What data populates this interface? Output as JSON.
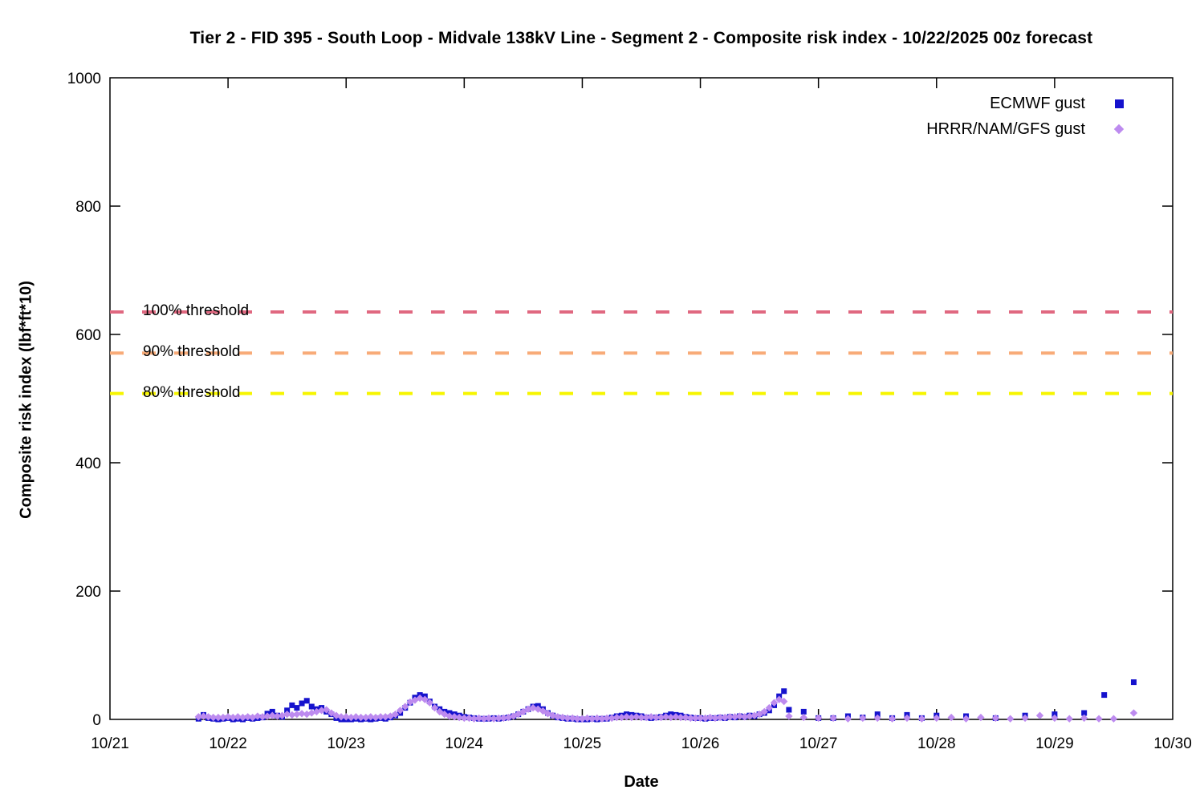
{
  "chart": {
    "title": "Tier 2 - FID 395 - South Loop - Midvale 138kV Line - Segment 2 - Composite risk index - 10/22/2025 00z forecast",
    "x_label": "Date",
    "y_label": "Composite risk index (lbf*ft*10)"
  },
  "chart_data": {
    "type": "scatter",
    "title": "Tier 2 - FID 395 - South Loop - Midvale 138kV Line - Segment 2 - Composite risk index - 10/22/2025 00z forecast",
    "xlabel": "Date",
    "ylabel": "Composite risk index (lbf*ft*10)",
    "grid": false,
    "legend_position": "top-right",
    "ylim": [
      0,
      1000
    ],
    "yticks": [
      0,
      200,
      400,
      600,
      800,
      1000
    ],
    "x_axis": {
      "unit": "days after 10/21 00:00",
      "range_days": [
        0,
        9
      ],
      "tick_labels": [
        "10/21",
        "10/22",
        "10/23",
        "10/24",
        "10/25",
        "10/26",
        "10/27",
        "10/28",
        "10/29",
        "10/30"
      ]
    },
    "thresholds": [
      {
        "label": "100% threshold",
        "value": 635,
        "color": "#e06880"
      },
      {
        "label": "90% threshold",
        "value": 571,
        "color": "#f8ab78"
      },
      {
        "label": "80% threshold",
        "value": 508,
        "color": "#f6f500"
      }
    ],
    "series": [
      {
        "name": "ECMWF gust",
        "marker": "square",
        "color": "#1512cd",
        "points": [
          [
            0.75,
            1
          ],
          [
            0.792,
            7
          ],
          [
            0.833,
            2
          ],
          [
            0.875,
            1
          ],
          [
            0.917,
            0
          ],
          [
            0.958,
            1
          ],
          [
            1,
            2
          ],
          [
            1.042,
            0
          ],
          [
            1.083,
            1
          ],
          [
            1.125,
            0
          ],
          [
            1.167,
            2
          ],
          [
            1.208,
            1
          ],
          [
            1.25,
            2
          ],
          [
            1.292,
            3
          ],
          [
            1.333,
            9
          ],
          [
            1.375,
            12
          ],
          [
            1.417,
            6
          ],
          [
            1.458,
            4
          ],
          [
            1.5,
            14
          ],
          [
            1.542,
            22
          ],
          [
            1.583,
            18
          ],
          [
            1.625,
            25
          ],
          [
            1.667,
            29
          ],
          [
            1.708,
            20
          ],
          [
            1.75,
            16
          ],
          [
            1.792,
            18
          ],
          [
            1.833,
            12
          ],
          [
            1.875,
            8
          ],
          [
            1.917,
            2
          ],
          [
            1.958,
            0
          ],
          [
            2,
            0
          ],
          [
            2.042,
            0
          ],
          [
            2.083,
            1
          ],
          [
            2.125,
            0
          ],
          [
            2.167,
            1
          ],
          [
            2.208,
            0
          ],
          [
            2.25,
            1
          ],
          [
            2.292,
            2
          ],
          [
            2.333,
            1
          ],
          [
            2.375,
            3
          ],
          [
            2.417,
            6
          ],
          [
            2.458,
            10
          ],
          [
            2.5,
            18
          ],
          [
            2.542,
            26
          ],
          [
            2.583,
            34
          ],
          [
            2.625,
            38
          ],
          [
            2.667,
            36
          ],
          [
            2.708,
            28
          ],
          [
            2.75,
            20
          ],
          [
            2.792,
            16
          ],
          [
            2.833,
            12
          ],
          [
            2.875,
            10
          ],
          [
            2.917,
            8
          ],
          [
            2.958,
            6
          ],
          [
            3,
            4
          ],
          [
            3.042,
            3
          ],
          [
            3.083,
            2
          ],
          [
            3.125,
            1
          ],
          [
            3.167,
            1
          ],
          [
            3.208,
            1
          ],
          [
            3.25,
            2
          ],
          [
            3.292,
            1
          ],
          [
            3.333,
            2
          ],
          [
            3.375,
            3
          ],
          [
            3.417,
            5
          ],
          [
            3.458,
            8
          ],
          [
            3.5,
            12
          ],
          [
            3.542,
            16
          ],
          [
            3.583,
            20
          ],
          [
            3.625,
            21
          ],
          [
            3.667,
            16
          ],
          [
            3.708,
            10
          ],
          [
            3.75,
            6
          ],
          [
            3.792,
            3
          ],
          [
            3.833,
            2
          ],
          [
            3.875,
            1
          ],
          [
            3.917,
            1
          ],
          [
            3.958,
            0
          ],
          [
            4,
            0
          ],
          [
            4.042,
            0
          ],
          [
            4.083,
            1
          ],
          [
            4.125,
            0
          ],
          [
            4.167,
            1
          ],
          [
            4.208,
            1
          ],
          [
            4.25,
            3
          ],
          [
            4.292,
            5
          ],
          [
            4.333,
            6
          ],
          [
            4.375,
            8
          ],
          [
            4.417,
            7
          ],
          [
            4.458,
            6
          ],
          [
            4.5,
            5
          ],
          [
            4.542,
            3
          ],
          [
            4.583,
            2
          ],
          [
            4.625,
            3
          ],
          [
            4.667,
            4
          ],
          [
            4.708,
            6
          ],
          [
            4.75,
            8
          ],
          [
            4.792,
            7
          ],
          [
            4.833,
            6
          ],
          [
            4.875,
            4
          ],
          [
            4.917,
            3
          ],
          [
            4.958,
            2
          ],
          [
            5,
            2
          ],
          [
            5.042,
            1
          ],
          [
            5.083,
            2
          ],
          [
            5.125,
            2
          ],
          [
            5.167,
            3
          ],
          [
            5.208,
            2
          ],
          [
            5.25,
            4
          ],
          [
            5.292,
            3
          ],
          [
            5.333,
            5
          ],
          [
            5.375,
            4
          ],
          [
            5.417,
            6
          ],
          [
            5.458,
            5
          ],
          [
            5.5,
            8
          ],
          [
            5.542,
            10
          ],
          [
            5.583,
            14
          ],
          [
            5.625,
            22
          ],
          [
            5.667,
            36
          ],
          [
            5.708,
            44
          ],
          [
            5.75,
            15
          ],
          [
            5.875,
            12
          ],
          [
            6,
            2
          ],
          [
            6.125,
            2
          ],
          [
            6.25,
            5
          ],
          [
            6.375,
            3
          ],
          [
            6.5,
            8
          ],
          [
            6.625,
            2
          ],
          [
            6.75,
            7
          ],
          [
            6.875,
            2
          ],
          [
            7,
            6
          ],
          [
            7.25,
            5
          ],
          [
            7.5,
            2
          ],
          [
            7.75,
            6
          ],
          [
            8,
            8
          ],
          [
            8.25,
            10
          ],
          [
            8.42,
            38
          ],
          [
            8.67,
            58
          ]
        ]
      },
      {
        "name": "HRRR/NAM/GFS gust",
        "marker": "diamond",
        "color": "#bd8bef",
        "points": [
          [
            0.75,
            4
          ],
          [
            0.792,
            5
          ],
          [
            0.833,
            4
          ],
          [
            0.875,
            3
          ],
          [
            0.917,
            3
          ],
          [
            0.958,
            3
          ],
          [
            1,
            4
          ],
          [
            1.042,
            3
          ],
          [
            1.083,
            4
          ],
          [
            1.125,
            3
          ],
          [
            1.167,
            4
          ],
          [
            1.208,
            3
          ],
          [
            1.25,
            5
          ],
          [
            1.292,
            4
          ],
          [
            1.333,
            5
          ],
          [
            1.375,
            6
          ],
          [
            1.417,
            5
          ],
          [
            1.458,
            6
          ],
          [
            1.5,
            8
          ],
          [
            1.542,
            7
          ],
          [
            1.583,
            8
          ],
          [
            1.625,
            9
          ],
          [
            1.667,
            8
          ],
          [
            1.708,
            10
          ],
          [
            1.75,
            12
          ],
          [
            1.792,
            14
          ],
          [
            1.833,
            15
          ],
          [
            1.875,
            10
          ],
          [
            1.917,
            6
          ],
          [
            1.958,
            4
          ],
          [
            2,
            4
          ],
          [
            2.042,
            3
          ],
          [
            2.083,
            4
          ],
          [
            2.125,
            3
          ],
          [
            2.167,
            3
          ],
          [
            2.208,
            4
          ],
          [
            2.25,
            3
          ],
          [
            2.292,
            4
          ],
          [
            2.333,
            4
          ],
          [
            2.375,
            5
          ],
          [
            2.417,
            8
          ],
          [
            2.458,
            14
          ],
          [
            2.5,
            20
          ],
          [
            2.542,
            27
          ],
          [
            2.583,
            30
          ],
          [
            2.625,
            33
          ],
          [
            2.667,
            31
          ],
          [
            2.708,
            26
          ],
          [
            2.75,
            18
          ],
          [
            2.792,
            12
          ],
          [
            2.833,
            8
          ],
          [
            2.875,
            5
          ],
          [
            2.917,
            4
          ],
          [
            2.958,
            3
          ],
          [
            3,
            2
          ],
          [
            3.042,
            2
          ],
          [
            3.083,
            1
          ],
          [
            3.125,
            2
          ],
          [
            3.167,
            1
          ],
          [
            3.208,
            2
          ],
          [
            3.25,
            1
          ],
          [
            3.292,
            2
          ],
          [
            3.333,
            2
          ],
          [
            3.375,
            3
          ],
          [
            3.417,
            5
          ],
          [
            3.458,
            8
          ],
          [
            3.5,
            12
          ],
          [
            3.542,
            16
          ],
          [
            3.583,
            18
          ],
          [
            3.625,
            16
          ],
          [
            3.667,
            13
          ],
          [
            3.708,
            9
          ],
          [
            3.75,
            6
          ],
          [
            3.792,
            4
          ],
          [
            3.833,
            3
          ],
          [
            3.875,
            2
          ],
          [
            3.917,
            2
          ],
          [
            3.958,
            1
          ],
          [
            4,
            1
          ],
          [
            4.042,
            2
          ],
          [
            4.083,
            1
          ],
          [
            4.125,
            2
          ],
          [
            4.167,
            1
          ],
          [
            4.208,
            2
          ],
          [
            4.25,
            2
          ],
          [
            4.292,
            3
          ],
          [
            4.333,
            3
          ],
          [
            4.375,
            4
          ],
          [
            4.417,
            3
          ],
          [
            4.458,
            4
          ],
          [
            4.5,
            3
          ],
          [
            4.542,
            3
          ],
          [
            4.583,
            4
          ],
          [
            4.625,
            3
          ],
          [
            4.667,
            3
          ],
          [
            4.708,
            4
          ],
          [
            4.75,
            3
          ],
          [
            4.792,
            4
          ],
          [
            4.833,
            3
          ],
          [
            4.875,
            3
          ],
          [
            4.917,
            2
          ],
          [
            4.958,
            2
          ],
          [
            5,
            2
          ],
          [
            5.042,
            2
          ],
          [
            5.083,
            3
          ],
          [
            5.125,
            2
          ],
          [
            5.167,
            3
          ],
          [
            5.208,
            3
          ],
          [
            5.25,
            4
          ],
          [
            5.292,
            4
          ],
          [
            5.333,
            5
          ],
          [
            5.375,
            4
          ],
          [
            5.417,
            5
          ],
          [
            5.458,
            6
          ],
          [
            5.5,
            8
          ],
          [
            5.542,
            12
          ],
          [
            5.583,
            18
          ],
          [
            5.625,
            26
          ],
          [
            5.667,
            31
          ],
          [
            5.708,
            28
          ],
          [
            5.75,
            5
          ],
          [
            5.875,
            3
          ],
          [
            6,
            2
          ],
          [
            6.125,
            2
          ],
          [
            6.25,
            1
          ],
          [
            6.375,
            2
          ],
          [
            6.5,
            2
          ],
          [
            6.625,
            1
          ],
          [
            6.75,
            2
          ],
          [
            6.875,
            1
          ],
          [
            7,
            2
          ],
          [
            7.125,
            3
          ],
          [
            7.25,
            1
          ],
          [
            7.375,
            3
          ],
          [
            7.5,
            2
          ],
          [
            7.625,
            1
          ],
          [
            7.75,
            2
          ],
          [
            7.875,
            6
          ],
          [
            8,
            2
          ],
          [
            8.125,
            1
          ],
          [
            8.25,
            2
          ],
          [
            8.375,
            1
          ],
          [
            8.5,
            1
          ],
          [
            8.67,
            10
          ]
        ]
      }
    ]
  }
}
